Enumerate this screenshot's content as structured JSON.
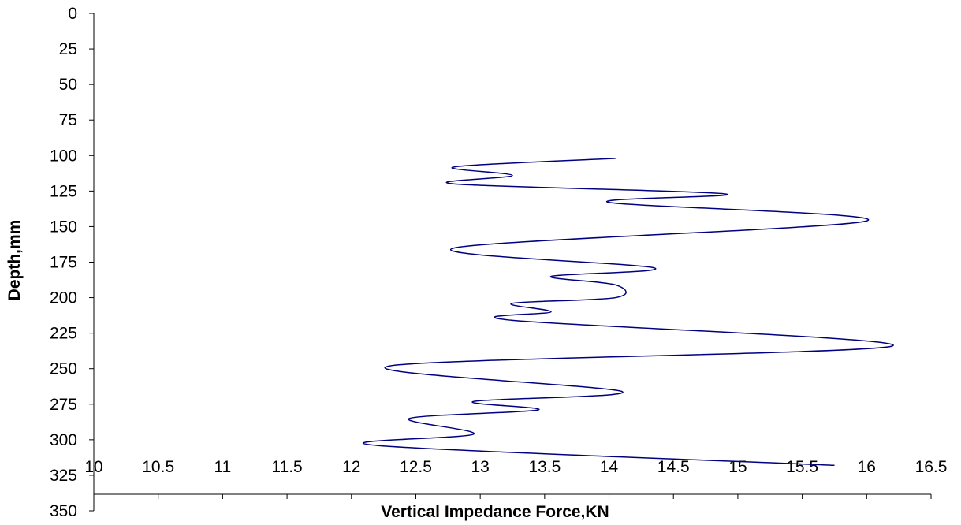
{
  "chart_data": {
    "type": "line",
    "title": "",
    "xlabel": "Vertical Impedance Force,KN",
    "ylabel": "Depth,mm",
    "xlim": [
      10,
      16.5
    ],
    "ylim": [
      0,
      350
    ],
    "y_inverted": true,
    "x_ticks": [
      "10",
      "10.5",
      "11",
      "11.5",
      "12",
      "12.5",
      "13",
      "13.5",
      "14",
      "14.5",
      "15",
      "15.5",
      "16",
      "16.5"
    ],
    "x_tick_values": [
      10,
      10.5,
      11,
      11.5,
      12,
      12.5,
      13,
      13.5,
      14,
      14.5,
      15,
      15.5,
      16,
      16.5
    ],
    "y_ticks": [
      "0",
      "25",
      "50",
      "75",
      "100",
      "125",
      "150",
      "175",
      "200",
      "225",
      "250",
      "275",
      "300",
      "325",
      "350"
    ],
    "y_tick_values": [
      0,
      25,
      50,
      75,
      100,
      125,
      150,
      175,
      200,
      225,
      250,
      275,
      300,
      325,
      350
    ],
    "grid": false,
    "legend": "none",
    "series": [
      {
        "color": "#000080",
        "points": [
          [
            14.05,
            102
          ],
          [
            12.8,
            108
          ],
          [
            13.25,
            114
          ],
          [
            12.8,
            120
          ],
          [
            14.9,
            127
          ],
          [
            14.0,
            133
          ],
          [
            16.0,
            146
          ],
          [
            12.8,
            165
          ],
          [
            14.35,
            179
          ],
          [
            13.55,
            185
          ],
          [
            14.05,
            191
          ],
          [
            14.05,
            200
          ],
          [
            13.25,
            204
          ],
          [
            13.55,
            210
          ],
          [
            13.25,
            216
          ],
          [
            16.2,
            234
          ],
          [
            12.3,
            248
          ],
          [
            14.1,
            266
          ],
          [
            12.95,
            273
          ],
          [
            13.45,
            279
          ],
          [
            12.45,
            285
          ],
          [
            12.95,
            296
          ],
          [
            12.2,
            304
          ],
          [
            15.75,
            318
          ]
        ]
      }
    ]
  }
}
